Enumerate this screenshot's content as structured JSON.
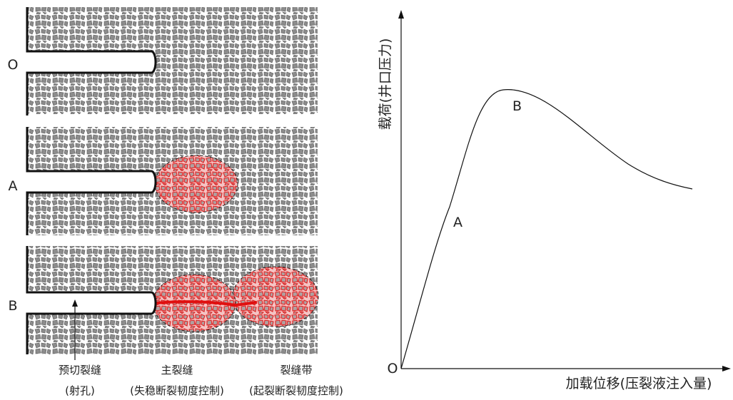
{
  "panels": [
    {
      "label": "O"
    },
    {
      "label": "A"
    },
    {
      "label": "B"
    }
  ],
  "bottom_labels": [
    {
      "title": "预切裂缝",
      "note": "(射孔)"
    },
    {
      "title": "主裂缝",
      "note": "(失稳断裂韧度控制)"
    },
    {
      "title": "裂缝带",
      "note": "(起裂断裂韧度控制)"
    }
  ],
  "curve": {
    "origin": "O",
    "y_axis_label": "载荷(井口压力)",
    "x_axis_label": "加载位移(压裂液注入量)",
    "points": [
      {
        "label": "A"
      },
      {
        "label": "B"
      }
    ]
  }
}
